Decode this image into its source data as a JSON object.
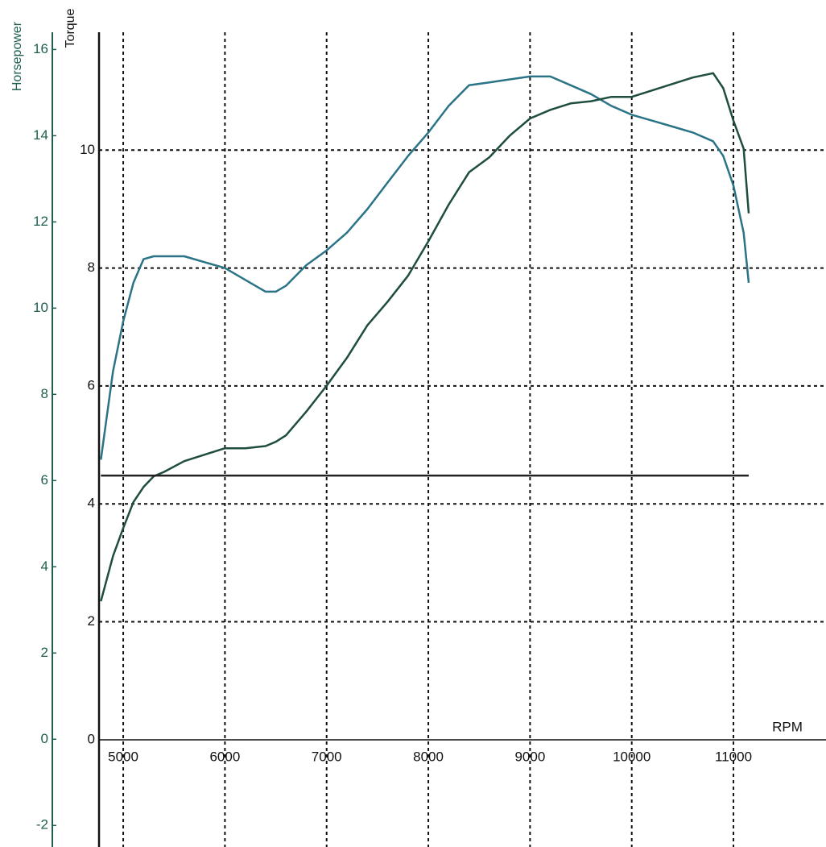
{
  "chart_data": {
    "type": "line",
    "x_label": "RPM",
    "y_label": "Torque",
    "y2_label": "Horsepower",
    "x": [
      4780,
      4900,
      5000,
      5100,
      5200,
      5300,
      5400,
      5600,
      5800,
      6000,
      6200,
      6400,
      6500,
      6600,
      6800,
      7000,
      7200,
      7400,
      7600,
      7800,
      8000,
      8200,
      8400,
      8600,
      8800,
      9000,
      9200,
      9400,
      9600,
      9800,
      10000,
      10200,
      10400,
      10600,
      10800,
      10900,
      11000,
      11100,
      11150
    ],
    "series": [
      {
        "color": "#2b7386",
        "axis": "y",
        "values": [
          4.75,
          6.25,
          7.1,
          7.75,
          8.15,
          8.2,
          8.2,
          8.2,
          8.1,
          8.0,
          7.8,
          7.6,
          7.6,
          7.7,
          8.05,
          8.3,
          8.6,
          9.0,
          9.45,
          9.9,
          10.3,
          10.75,
          11.1,
          11.15,
          11.2,
          11.25,
          11.25,
          11.1,
          10.95,
          10.75,
          10.6,
          10.5,
          10.4,
          10.3,
          10.15,
          9.9,
          9.4,
          8.6,
          7.75
        ]
      },
      {
        "color": "#1f4d3f",
        "axis": "y2",
        "values": [
          3.2,
          4.25,
          4.9,
          5.5,
          5.85,
          6.1,
          6.2,
          6.45,
          6.6,
          6.75,
          6.75,
          6.8,
          6.9,
          7.05,
          7.6,
          8.2,
          8.85,
          9.6,
          10.15,
          10.75,
          11.55,
          12.4,
          13.15,
          13.5,
          14.0,
          14.4,
          14.6,
          14.75,
          14.8,
          14.9,
          14.9,
          15.05,
          15.2,
          15.35,
          15.45,
          15.1,
          14.35,
          13.7,
          12.2
        ]
      },
      {
        "color": "#222222",
        "axis": "y",
        "values": [
          4.48,
          4.48,
          4.48,
          4.48,
          4.48,
          4.48,
          4.48,
          4.48,
          4.48,
          4.48,
          4.48,
          4.48,
          4.48,
          4.48,
          4.48,
          4.48,
          4.48,
          4.48,
          4.48,
          4.48,
          4.48,
          4.48,
          4.48,
          4.48,
          4.48,
          4.48,
          4.48,
          4.48,
          4.48,
          4.48,
          4.48,
          4.48,
          4.48,
          4.48,
          4.48,
          4.48,
          4.48,
          4.48,
          4.48
        ]
      }
    ],
    "xlim": [
      4762,
      11910
    ],
    "xticks": [
      5000,
      6000,
      7000,
      8000,
      9000,
      10000,
      11000
    ],
    "ylim": [
      -1.82,
      12.0
    ],
    "yticks": [
      0,
      2,
      4,
      6,
      8,
      10
    ],
    "y2lim": [
      -2.5,
      16.4
    ],
    "y2ticks": [
      -2,
      0,
      2,
      4,
      6,
      8,
      10,
      12,
      14,
      16
    ],
    "y2_color": "#1e5e4e",
    "grid": true
  }
}
